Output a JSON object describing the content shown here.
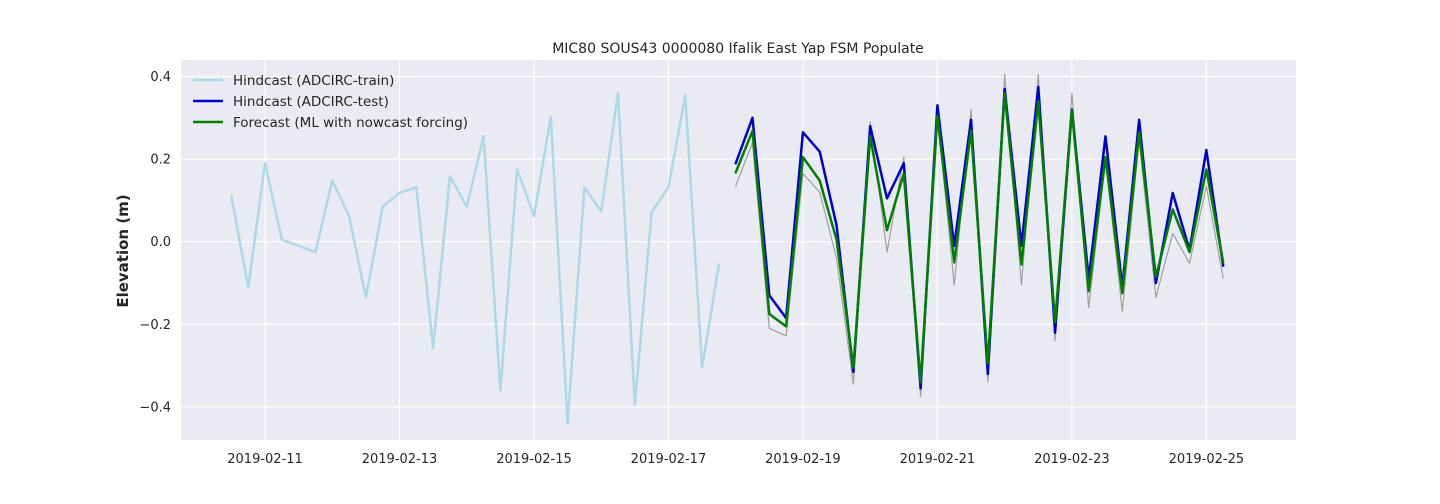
{
  "chart_data": {
    "type": "line",
    "title": "MIC80 SOUS43 0000080 Ifalik East Yap FSM Populate",
    "xlabel": "",
    "ylabel": "Elevation (m)",
    "x_ticks": [
      "2019-02-11",
      "2019-02-13",
      "2019-02-15",
      "2019-02-17",
      "2019-02-19",
      "2019-02-21",
      "2019-02-23",
      "2019-02-25"
    ],
    "y_ticks": [
      "0.4",
      "0.2",
      "0.0",
      "−0.2",
      "−0.4"
    ],
    "xlim": [
      "2019-02-09T18:00",
      "2019-02-26T08:00"
    ],
    "ylim": [
      -0.48,
      0.44
    ],
    "grid": true,
    "legend_position": "top-left",
    "colors": {
      "plot_background": "#eaeaf2",
      "grid": "#ffffff",
      "train": "#add8e6",
      "test": "#0000cd",
      "forecast": "#008000",
      "reference": "#a0a0a0"
    },
    "series": [
      {
        "name": "Hindcast (ADCIRC-train)",
        "role": "train",
        "x": [
          "2019-02-10T12:00",
          "2019-02-10T18:00",
          "2019-02-11T00:00",
          "2019-02-11T06:00",
          "2019-02-11T12:00",
          "2019-02-11T18:00",
          "2019-02-12T00:00",
          "2019-02-12T06:00",
          "2019-02-12T12:00",
          "2019-02-12T18:00",
          "2019-02-13T00:00",
          "2019-02-13T06:00",
          "2019-02-13T12:00",
          "2019-02-13T18:00",
          "2019-02-14T00:00",
          "2019-02-14T06:00",
          "2019-02-14T12:00",
          "2019-02-14T18:00",
          "2019-02-15T00:00",
          "2019-02-15T06:00",
          "2019-02-15T12:00",
          "2019-02-15T18:00",
          "2019-02-16T00:00",
          "2019-02-16T06:00",
          "2019-02-16T12:00",
          "2019-02-16T18:00",
          "2019-02-17T00:00",
          "2019-02-17T06:00",
          "2019-02-17T12:00",
          "2019-02-17T18:00"
        ],
        "y": [
          0.11,
          -0.11,
          0.19,
          0.005,
          -0.01,
          -0.025,
          0.148,
          0.062,
          -0.135,
          0.085,
          0.118,
          0.132,
          -0.258,
          0.158,
          0.085,
          0.255,
          -0.36,
          0.175,
          0.062,
          0.302,
          -0.44,
          0.132,
          0.073,
          0.36,
          -0.395,
          0.072,
          0.132,
          0.355,
          -0.305,
          -0.055
        ]
      },
      {
        "name": "Hindcast (ADCIRC-test)",
        "role": "test",
        "x": [
          "2019-02-18T00:00",
          "2019-02-18T06:00",
          "2019-02-18T12:00",
          "2019-02-18T18:00",
          "2019-02-19T00:00",
          "2019-02-19T06:00",
          "2019-02-19T12:00",
          "2019-02-19T18:00",
          "2019-02-20T00:00",
          "2019-02-20T06:00",
          "2019-02-20T12:00",
          "2019-02-20T18:00",
          "2019-02-21T00:00",
          "2019-02-21T06:00",
          "2019-02-21T12:00",
          "2019-02-21T18:00",
          "2019-02-22T00:00",
          "2019-02-22T06:00",
          "2019-02-22T12:00",
          "2019-02-22T18:00",
          "2019-02-23T00:00",
          "2019-02-23T06:00",
          "2019-02-23T12:00",
          "2019-02-23T18:00",
          "2019-02-24T00:00",
          "2019-02-24T06:00",
          "2019-02-24T12:00",
          "2019-02-24T18:00",
          "2019-02-25T00:00",
          "2019-02-25T06:00"
        ],
        "y": [
          0.19,
          0.3,
          -0.13,
          -0.185,
          0.265,
          0.218,
          0.04,
          -0.315,
          0.28,
          0.105,
          0.19,
          -0.355,
          0.33,
          -0.01,
          0.295,
          -0.32,
          0.37,
          -0.01,
          0.375,
          -0.22,
          0.32,
          -0.09,
          0.255,
          -0.11,
          0.295,
          -0.1,
          0.118,
          -0.02,
          0.222,
          -0.058
        ]
      },
      {
        "name": "Forecast (ML with nowcast forcing)",
        "role": "forecast",
        "x": [
          "2019-02-18T00:00",
          "2019-02-18T06:00",
          "2019-02-18T12:00",
          "2019-02-18T18:00",
          "2019-02-19T00:00",
          "2019-02-19T06:00",
          "2019-02-19T12:00",
          "2019-02-19T18:00",
          "2019-02-20T00:00",
          "2019-02-20T06:00",
          "2019-02-20T12:00",
          "2019-02-20T18:00",
          "2019-02-21T00:00",
          "2019-02-21T06:00",
          "2019-02-21T12:00",
          "2019-02-21T18:00",
          "2019-02-22T00:00",
          "2019-02-22T06:00",
          "2019-02-22T12:00",
          "2019-02-22T18:00",
          "2019-02-23T00:00",
          "2019-02-23T06:00",
          "2019-02-23T12:00",
          "2019-02-23T18:00",
          "2019-02-24T00:00",
          "2019-02-24T06:00",
          "2019-02-24T12:00",
          "2019-02-24T18:00",
          "2019-02-25T00:00",
          "2019-02-25T06:00"
        ],
        "y": [
          0.168,
          0.268,
          -0.175,
          -0.205,
          0.205,
          0.148,
          0.005,
          -0.305,
          0.255,
          0.028,
          0.165,
          -0.34,
          0.305,
          -0.05,
          0.27,
          -0.295,
          0.36,
          -0.055,
          0.34,
          -0.195,
          0.318,
          -0.12,
          0.205,
          -0.125,
          0.265,
          -0.085,
          0.078,
          -0.025,
          0.175,
          -0.05
        ]
      },
      {
        "name": "",
        "role": "reference",
        "x": [
          "2019-02-18T00:00",
          "2019-02-18T06:00",
          "2019-02-18T12:00",
          "2019-02-18T18:00",
          "2019-02-19T00:00",
          "2019-02-19T06:00",
          "2019-02-19T12:00",
          "2019-02-19T18:00",
          "2019-02-20T00:00",
          "2019-02-20T06:00",
          "2019-02-20T12:00",
          "2019-02-20T18:00",
          "2019-02-21T00:00",
          "2019-02-21T06:00",
          "2019-02-21T12:00",
          "2019-02-21T18:00",
          "2019-02-22T00:00",
          "2019-02-22T06:00",
          "2019-02-22T12:00",
          "2019-02-22T18:00",
          "2019-02-23T00:00",
          "2019-02-23T06:00",
          "2019-02-23T12:00",
          "2019-02-23T18:00",
          "2019-02-24T00:00",
          "2019-02-24T06:00",
          "2019-02-24T12:00",
          "2019-02-24T18:00",
          "2019-02-25T00:00",
          "2019-02-25T06:00"
        ],
        "y": [
          0.135,
          0.24,
          -0.21,
          -0.228,
          0.165,
          0.12,
          -0.04,
          -0.345,
          0.29,
          -0.025,
          0.205,
          -0.375,
          0.31,
          -0.105,
          0.32,
          -0.34,
          0.405,
          -0.105,
          0.405,
          -0.24,
          0.36,
          -0.16,
          0.2,
          -0.168,
          0.245,
          -0.135,
          0.02,
          -0.052,
          0.135,
          -0.088
        ]
      }
    ]
  }
}
